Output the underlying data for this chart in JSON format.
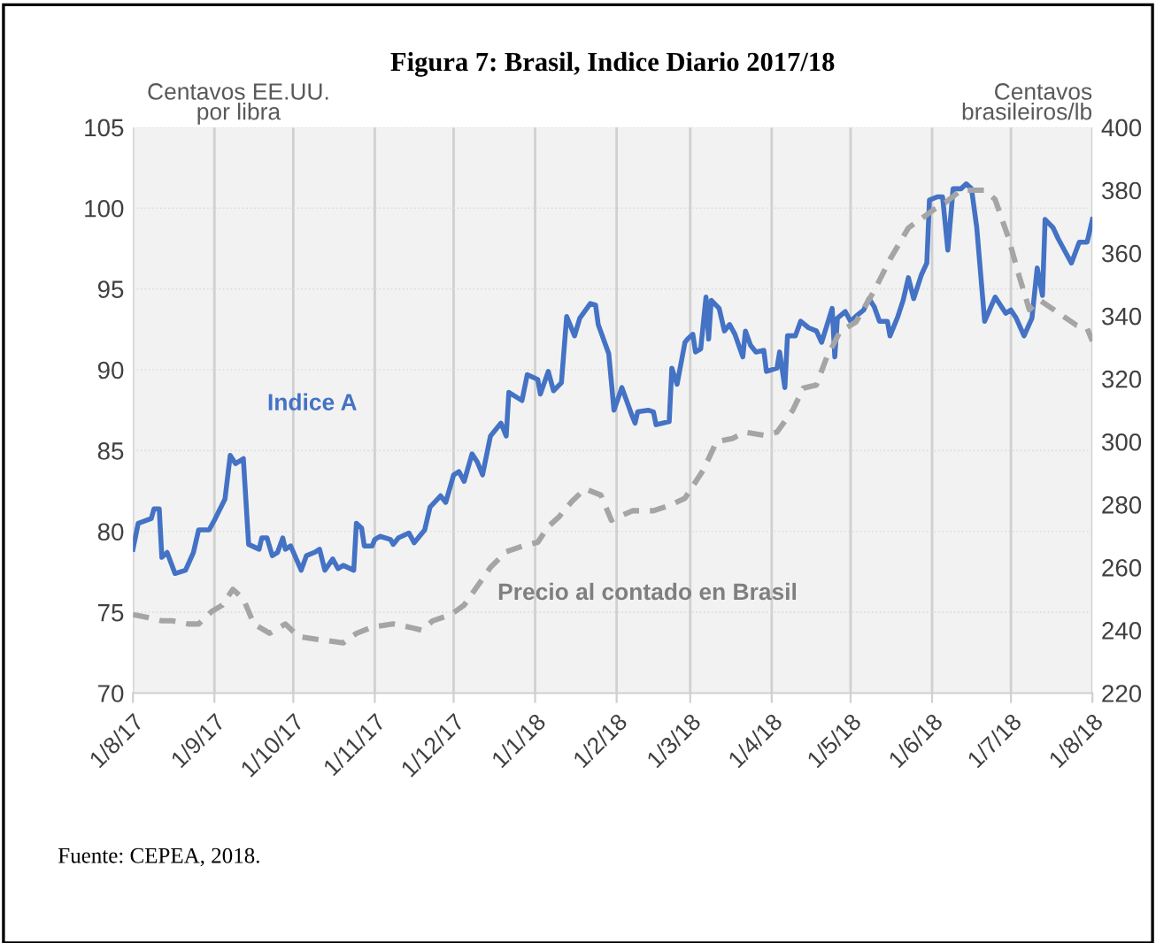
{
  "chart_data": {
    "type": "line",
    "title": "Figura 7: Brasil, Indice Diario 2017/18",
    "ylabel": "Centavos EE.UU.\npor libra",
    "y2label": "Centavos\nbrasileiros/lb",
    "annotations": [
      "Fuente: CEPEA, 2018."
    ],
    "xlim": [
      "2017-08-01",
      "2018-08-01"
    ],
    "xticks": [
      {
        "value": "2017-08-01",
        "label": "1/8/17"
      },
      {
        "value": "2017-09-01",
        "label": "1/9/17"
      },
      {
        "value": "2017-10-01",
        "label": "1/10/17"
      },
      {
        "value": "2017-11-01",
        "label": "1/11/17"
      },
      {
        "value": "2017-12-01",
        "label": "1/12/17"
      },
      {
        "value": "2018-01-01",
        "label": "1/1/18"
      },
      {
        "value": "2018-02-01",
        "label": "1/2/18"
      },
      {
        "value": "2018-03-01",
        "label": "1/3/18"
      },
      {
        "value": "2018-04-01",
        "label": "1/4/18"
      },
      {
        "value": "2018-05-01",
        "label": "1/5/18"
      },
      {
        "value": "2018-06-01",
        "label": "1/6/18"
      },
      {
        "value": "2018-07-01",
        "label": "1/7/18"
      },
      {
        "value": "2018-08-01",
        "label": "1/8/18"
      }
    ],
    "ylim": [
      70,
      105
    ],
    "yticks": [
      70,
      75,
      80,
      85,
      90,
      95,
      100,
      105
    ],
    "y2lim": [
      220,
      400
    ],
    "y2ticks": [
      220,
      240,
      260,
      280,
      300,
      320,
      340,
      360,
      380,
      400
    ],
    "grid": true,
    "legend": false,
    "marker": "none",
    "series": [
      {
        "name": "Indice A",
        "color": "#4472c4",
        "line_style": "solid",
        "x": [
          "2017-08-01",
          "2017-08-03",
          "2017-08-08",
          "2017-08-09",
          "2017-08-11",
          "2017-08-12",
          "2017-08-14",
          "2017-08-17",
          "2017-08-21",
          "2017-08-24",
          "2017-08-26",
          "2017-08-30",
          "2017-09-01",
          "2017-09-05",
          "2017-09-07",
          "2017-09-09",
          "2017-09-12",
          "2017-09-14",
          "2017-09-18",
          "2017-09-19",
          "2017-09-21",
          "2017-09-23",
          "2017-09-25",
          "2017-09-27",
          "2017-09-28",
          "2017-09-30",
          "2017-10-04",
          "2017-10-06",
          "2017-10-09",
          "2017-10-11",
          "2017-10-13",
          "2017-10-16",
          "2017-10-18",
          "2017-10-20",
          "2017-10-24",
          "2017-10-25",
          "2017-10-27",
          "2017-10-28",
          "2017-10-31",
          "2017-11-01",
          "2017-11-03",
          "2017-11-07",
          "2017-11-08",
          "2017-11-10",
          "2017-11-14",
          "2017-11-16",
          "2017-11-20",
          "2017-11-22",
          "2017-11-26",
          "2017-11-28",
          "2017-12-01",
          "2017-12-03",
          "2017-12-05",
          "2017-12-08",
          "2017-12-10",
          "2017-12-12",
          "2017-12-15",
          "2017-12-19",
          "2017-12-21",
          "2017-12-22",
          "2017-12-27",
          "2017-12-29",
          "2018-01-02",
          "2018-01-03",
          "2018-01-06",
          "2018-01-08",
          "2018-01-11",
          "2018-01-13",
          "2018-01-16",
          "2018-01-18",
          "2018-01-22",
          "2018-01-24",
          "2018-01-25",
          "2018-01-29",
          "2018-01-31",
          "2018-02-03",
          "2018-02-07",
          "2018-02-08",
          "2018-02-09",
          "2018-02-13",
          "2018-02-15",
          "2018-02-16",
          "2018-02-21",
          "2018-02-22",
          "2018-02-24",
          "2018-02-27",
          "2018-02-28",
          "2018-03-02",
          "2018-03-03",
          "2018-03-05",
          "2018-03-07",
          "2018-03-08",
          "2018-03-09",
          "2018-03-12",
          "2018-03-14",
          "2018-03-16",
          "2018-03-18",
          "2018-03-21",
          "2018-03-22",
          "2018-03-24",
          "2018-03-26",
          "2018-03-29",
          "2018-03-30",
          "2018-04-03",
          "2018-04-04",
          "2018-04-06",
          "2018-04-07",
          "2018-04-10",
          "2018-04-12",
          "2018-04-15",
          "2018-04-18",
          "2018-04-20",
          "2018-04-24",
          "2018-04-25",
          "2018-04-26",
          "2018-04-29",
          "2018-05-01",
          "2018-05-03",
          "2018-05-06",
          "2018-05-08",
          "2018-05-10",
          "2018-05-12",
          "2018-05-15",
          "2018-05-16",
          "2018-05-19",
          "2018-05-21",
          "2018-05-23",
          "2018-05-25",
          "2018-05-28",
          "2018-05-30",
          "2018-05-31",
          "2018-06-03",
          "2018-06-05",
          "2018-06-07",
          "2018-06-09",
          "2018-06-12",
          "2018-06-14",
          "2018-06-16",
          "2018-06-18",
          "2018-06-21",
          "2018-06-25",
          "2018-06-29",
          "2018-07-01",
          "2018-07-03",
          "2018-07-06",
          "2018-07-09",
          "2018-07-11",
          "2018-07-13",
          "2018-07-14",
          "2018-07-17",
          "2018-07-19",
          "2018-07-22",
          "2018-07-24",
          "2018-07-27",
          "2018-07-30",
          "2018-08-01"
        ],
        "values": [
          78.9,
          80.5,
          80.8,
          81.4,
          81.4,
          78.4,
          78.7,
          77.4,
          77.6,
          78.7,
          80.1,
          80.1,
          80.7,
          82.0,
          84.7,
          84.2,
          84.5,
          79.2,
          78.9,
          79.6,
          79.6,
          78.5,
          78.7,
          79.6,
          78.9,
          79.1,
          77.6,
          78.5,
          78.7,
          78.9,
          77.6,
          78.3,
          77.7,
          77.9,
          77.6,
          80.5,
          80.2,
          79.1,
          79.1,
          79.5,
          79.7,
          79.5,
          79.2,
          79.6,
          79.9,
          79.3,
          80.1,
          81.5,
          82.2,
          81.8,
          83.5,
          83.7,
          83.1,
          84.8,
          84.3,
          83.5,
          85.9,
          86.7,
          85.9,
          88.6,
          88.1,
          89.7,
          89.4,
          88.5,
          89.9,
          88.7,
          89.2,
          93.3,
          92.1,
          93.2,
          94.1,
          94.0,
          92.8,
          91.0,
          87.5,
          88.9,
          87.1,
          86.7,
          87.4,
          87.5,
          87.4,
          86.6,
          86.8,
          90.1,
          89.1,
          91.7,
          91.9,
          92.2,
          91.1,
          91.3,
          94.5,
          91.9,
          94.3,
          93.8,
          92.4,
          92.8,
          92.2,
          90.8,
          92.4,
          91.5,
          91.1,
          91.2,
          89.9,
          90.1,
          91.1,
          88.9,
          92.1,
          92.1,
          93.0,
          92.6,
          92.4,
          91.7,
          93.8,
          90.8,
          93.2,
          93.6,
          93.0,
          93.3,
          93.7,
          94.4,
          93.9,
          93.0,
          93.0,
          92.1,
          93.3,
          94.3,
          95.7,
          94.4,
          95.9,
          96.6,
          100.5,
          100.7,
          100.7,
          97.4,
          101.2,
          101.2,
          101.5,
          101.2,
          98.8,
          93.0,
          94.5,
          93.5,
          93.7,
          93.2,
          92.1,
          93.2,
          96.3,
          94.6,
          99.3,
          98.8,
          98.1,
          97.2,
          96.6,
          97.9,
          97.9,
          99.3
        ]
      },
      {
        "name": "Precio al contado en Brasil",
        "color": "#a5a5a5",
        "line_style": "dashed",
        "axis": "y2",
        "x": [
          "2017-08-01",
          "2017-08-07",
          "2017-08-12",
          "2017-08-16",
          "2017-08-22",
          "2017-08-26",
          "2017-08-31",
          "2017-09-04",
          "2017-09-08",
          "2017-09-12",
          "2017-09-16",
          "2017-09-22",
          "2017-09-28",
          "2017-10-03",
          "2017-10-11",
          "2017-10-20",
          "2017-10-25",
          "2017-10-31",
          "2017-11-08",
          "2017-11-14",
          "2017-11-19",
          "2017-11-23",
          "2017-11-30",
          "2017-12-05",
          "2017-12-10",
          "2017-12-15",
          "2017-12-21",
          "2017-12-28",
          "2018-01-02",
          "2018-01-06",
          "2018-01-10",
          "2018-01-15",
          "2018-01-20",
          "2018-01-26",
          "2018-01-30",
          "2018-02-07",
          "2018-02-15",
          "2018-02-22",
          "2018-02-27",
          "2018-03-06",
          "2018-03-11",
          "2018-03-17",
          "2018-03-22",
          "2018-03-29",
          "2018-04-03",
          "2018-04-09",
          "2018-04-13",
          "2018-04-18",
          "2018-04-22",
          "2018-04-27",
          "2018-05-03",
          "2018-05-10",
          "2018-05-16",
          "2018-05-23",
          "2018-05-28",
          "2018-06-02",
          "2018-06-06",
          "2018-06-12",
          "2018-06-21",
          "2018-06-25",
          "2018-06-30",
          "2018-07-04",
          "2018-07-08",
          "2018-07-12",
          "2018-07-19",
          "2018-07-26",
          "2018-07-30",
          "2018-08-01"
        ],
        "values": [
          245,
          244,
          243,
          243,
          242,
          242,
          246,
          248,
          253,
          250,
          242,
          239,
          242,
          238,
          237,
          236,
          239,
          241,
          242,
          241,
          240,
          243,
          245,
          248,
          254,
          260,
          265,
          267,
          268,
          273,
          276,
          281,
          285,
          283,
          275,
          278,
          278,
          280,
          282,
          291,
          300,
          301,
          303,
          302,
          303,
          310,
          317,
          318,
          327,
          335,
          338,
          348,
          358,
          368,
          371,
          374,
          376,
          380,
          380,
          377,
          365,
          353,
          342,
          345,
          341,
          337,
          336,
          332
        ]
      }
    ]
  }
}
